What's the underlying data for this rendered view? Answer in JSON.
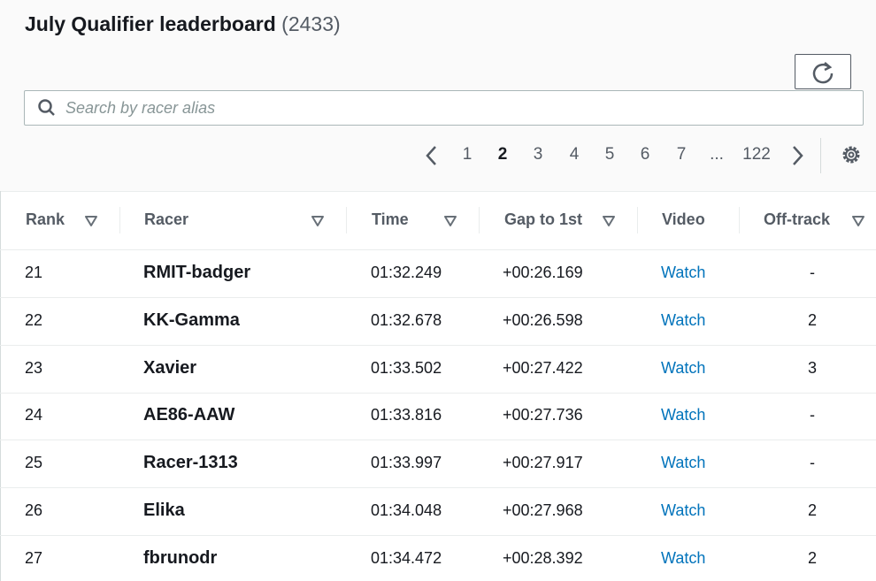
{
  "header": {
    "title": "July Qualifier leaderboard",
    "count": "(2433)"
  },
  "search": {
    "placeholder": "Search by racer alias"
  },
  "pagination": {
    "pages": [
      "1",
      "2",
      "3",
      "4",
      "5",
      "6",
      "7",
      "...",
      "122"
    ]
  },
  "table": {
    "columns": [
      "Rank",
      "Racer",
      "Time",
      "Gap to 1st",
      "Video",
      "Off-track"
    ],
    "rows": [
      [
        "21",
        "RMIT-badger",
        "01:32.249",
        "+00:26.169",
        "Watch",
        "-"
      ],
      [
        "22",
        "KK-Gamma",
        "01:32.678",
        "+00:26.598",
        "Watch",
        "2"
      ],
      [
        "23",
        "Xavier",
        "01:33.502",
        "+00:27.422",
        "Watch",
        "3"
      ],
      [
        "24",
        "AE86-AAW",
        "01:33.816",
        "+00:27.736",
        "Watch",
        "-"
      ],
      [
        "25",
        "Racer-1313",
        "01:33.997",
        "+00:27.917",
        "Watch",
        "-"
      ],
      [
        "26",
        "Elika",
        "01:34.048",
        "+00:27.968",
        "Watch",
        "2"
      ],
      [
        "27",
        "fbrunodr",
        "01:34.472",
        "+00:28.392",
        "Watch",
        "2"
      ]
    ]
  }
}
